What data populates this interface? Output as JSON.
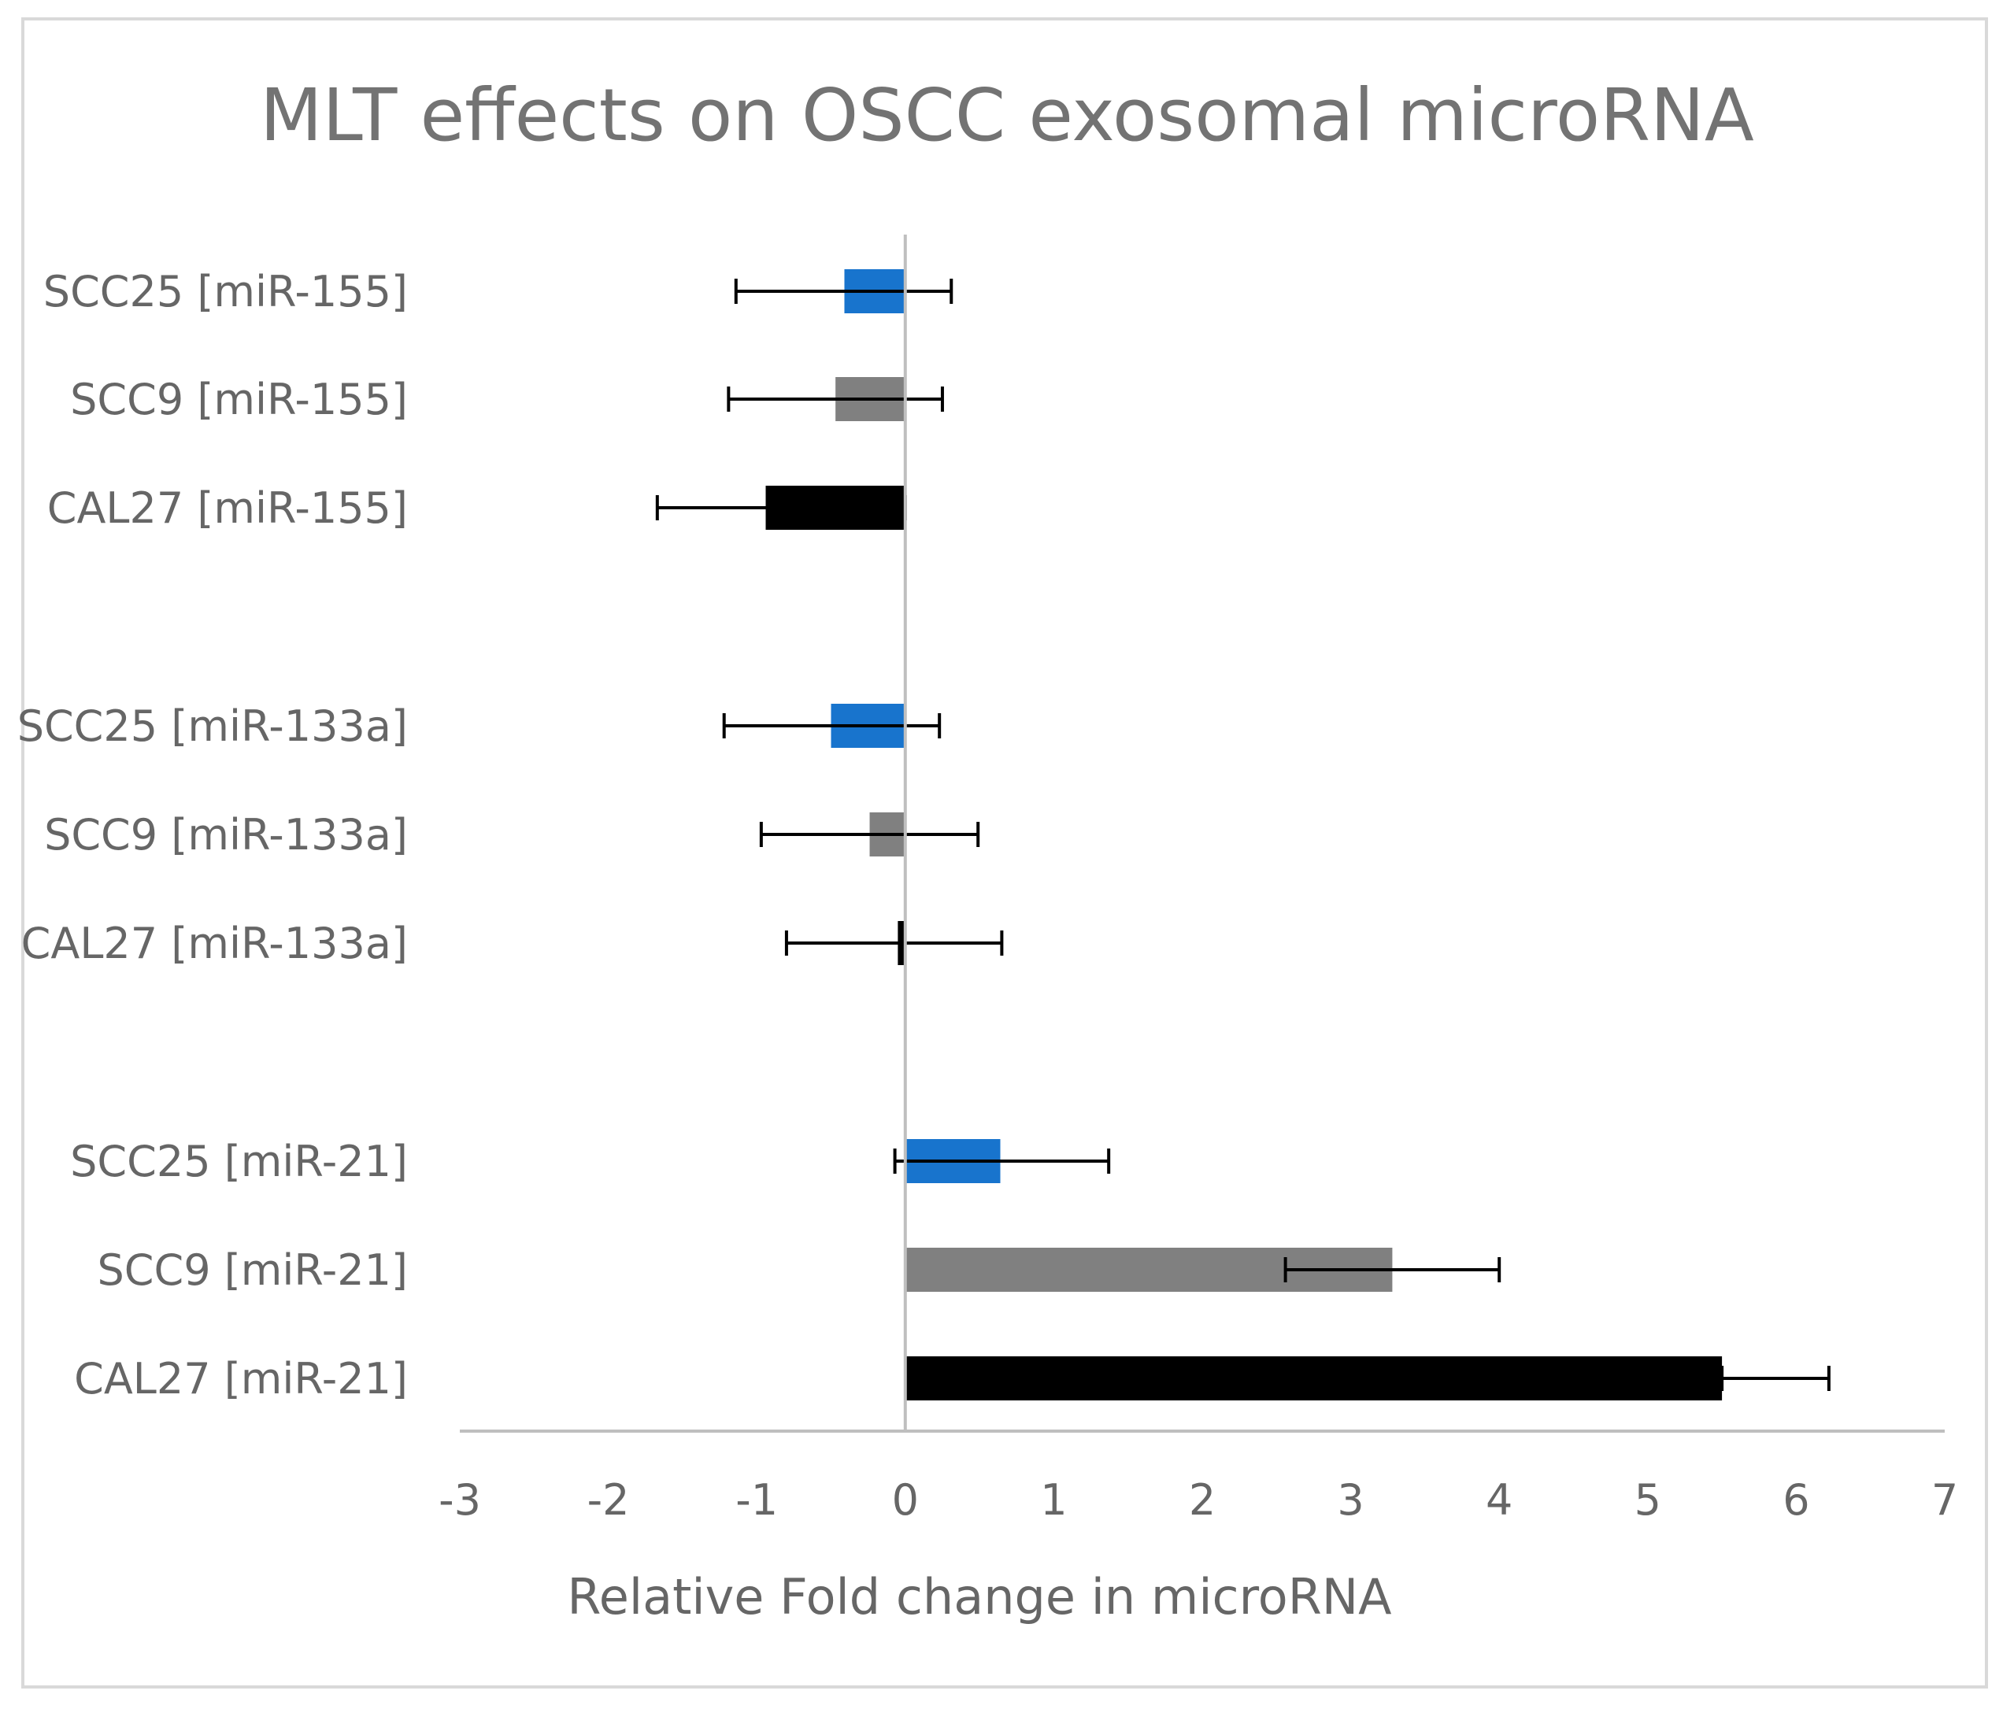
{
  "chart_data": {
    "type": "bar",
    "orientation": "horizontal",
    "title": "MLT effects on OSCC exosomal microRNA",
    "xlabel": "Relative Fold change in microRNA",
    "ylabel": "",
    "xlim": [
      -3,
      7
    ],
    "x_ticks": [
      "-3",
      "-2",
      "-1",
      "0",
      "1",
      "2",
      "3",
      "4",
      "5",
      "6",
      "7"
    ],
    "grid": false,
    "legend": "none",
    "categories": [
      "SCC25 [miR-155]",
      "SCC9 [miR-155]",
      "CAL27 [miR-155]",
      "SCC25 [miR-133a]",
      "SCC9 [miR-133a]",
      "CAL27 [miR-133a]",
      "SCC25 [miR-21]",
      "SCC9 [miR-21]",
      "CAL27 [miR-21]"
    ],
    "groups": [
      "miR-155",
      "miR-133a",
      "miR-21"
    ],
    "values": [
      -0.41,
      -0.47,
      -0.94,
      -0.5,
      -0.24,
      -0.05,
      0.64,
      3.28,
      5.5
    ],
    "error_low": [
      -1.14,
      -1.19,
      -1.67,
      -1.22,
      -0.97,
      -0.8,
      -0.07,
      2.56,
      5.5
    ],
    "error_high": [
      0.31,
      0.25,
      0.0,
      0.23,
      0.49,
      0.65,
      1.37,
      4.0,
      6.22
    ],
    "colors": [
      "#1874cd",
      "#808080",
      "#000000",
      "#1874cd",
      "#808080",
      "#000000",
      "#1874cd",
      "#808080",
      "#000000"
    ],
    "axis_color": "#bfbfbf",
    "error_bar_color": "#000000"
  }
}
